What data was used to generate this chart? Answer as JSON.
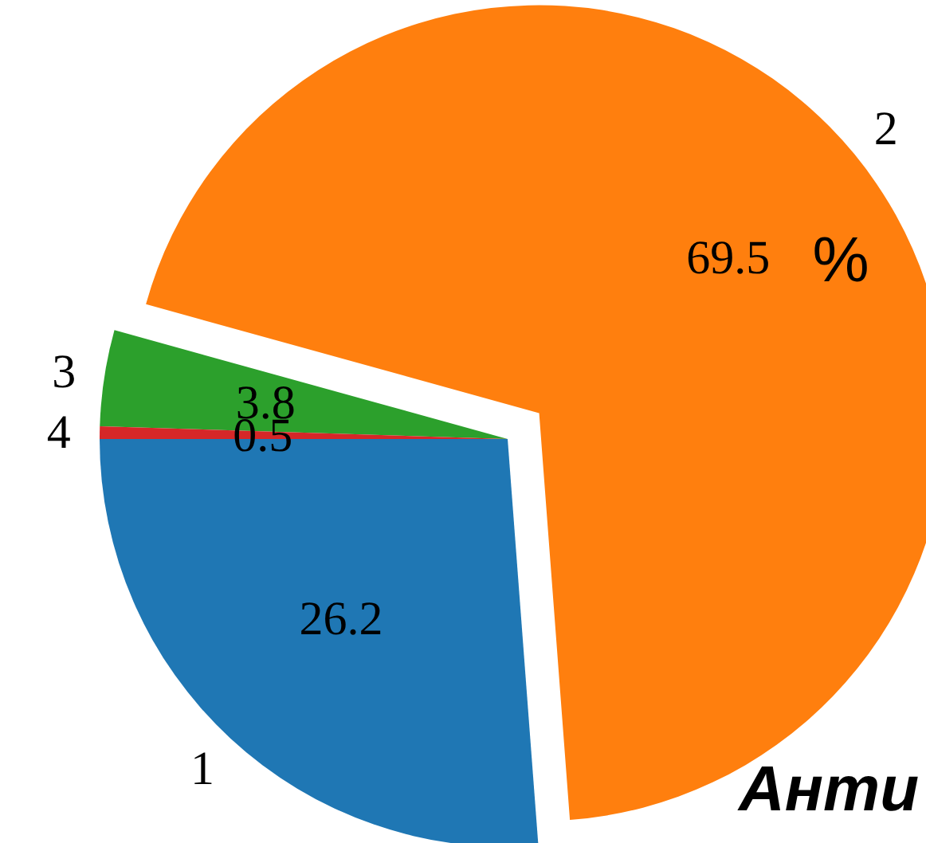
{
  "chart_data": {
    "type": "pie",
    "categories": [
      "1",
      "2",
      "3",
      "4"
    ],
    "values": [
      26.2,
      69.5,
      3.8,
      0.5
    ],
    "colors": [
      "#1f77b4",
      "#ff7f0e",
      "#2ca02c",
      "#d62728"
    ],
    "data_labels": true,
    "annotations": [
      "%",
      "Анти"
    ]
  }
}
